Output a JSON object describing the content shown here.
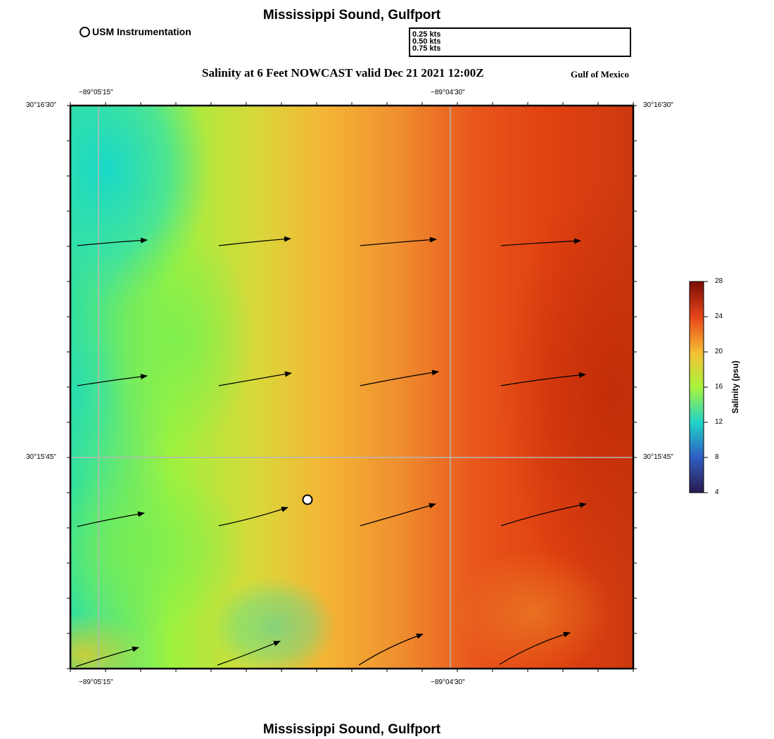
{
  "title": "Mississippi Sound, Gulfport",
  "subtitle": "Salinity at 6 Feet NOWCAST valid Dec 21 2021 12:00Z",
  "region_label": "Gulf of Mexico",
  "station_legend": {
    "label": "USM Instrumentation"
  },
  "vector_legend": [
    {
      "label": "0.25 kts",
      "speed": 0.25
    },
    {
      "label": "0.50 kts",
      "speed": 0.5
    },
    {
      "label": "0.75 kts",
      "speed": 0.75
    }
  ],
  "axes": {
    "lon_left": "−89°05'15\"",
    "lon_right": "−89°04'30\"",
    "lat_top": "30°16'30\"",
    "lat_mid": "30°15'45\""
  },
  "colorbar": {
    "label": "Salinity (psu)",
    "ticks": [
      "28",
      "24",
      "20",
      "16",
      "12",
      "8",
      "4"
    ],
    "stops": [
      "#2a1a4e",
      "#2f5fc4",
      "#1fd2c8",
      "#a8f53c",
      "#f5c035",
      "#e8461a",
      "#7a0c04"
    ]
  },
  "icons": {
    "station": "station-circle-icon",
    "vector": "current-arrow-icon"
  }
}
